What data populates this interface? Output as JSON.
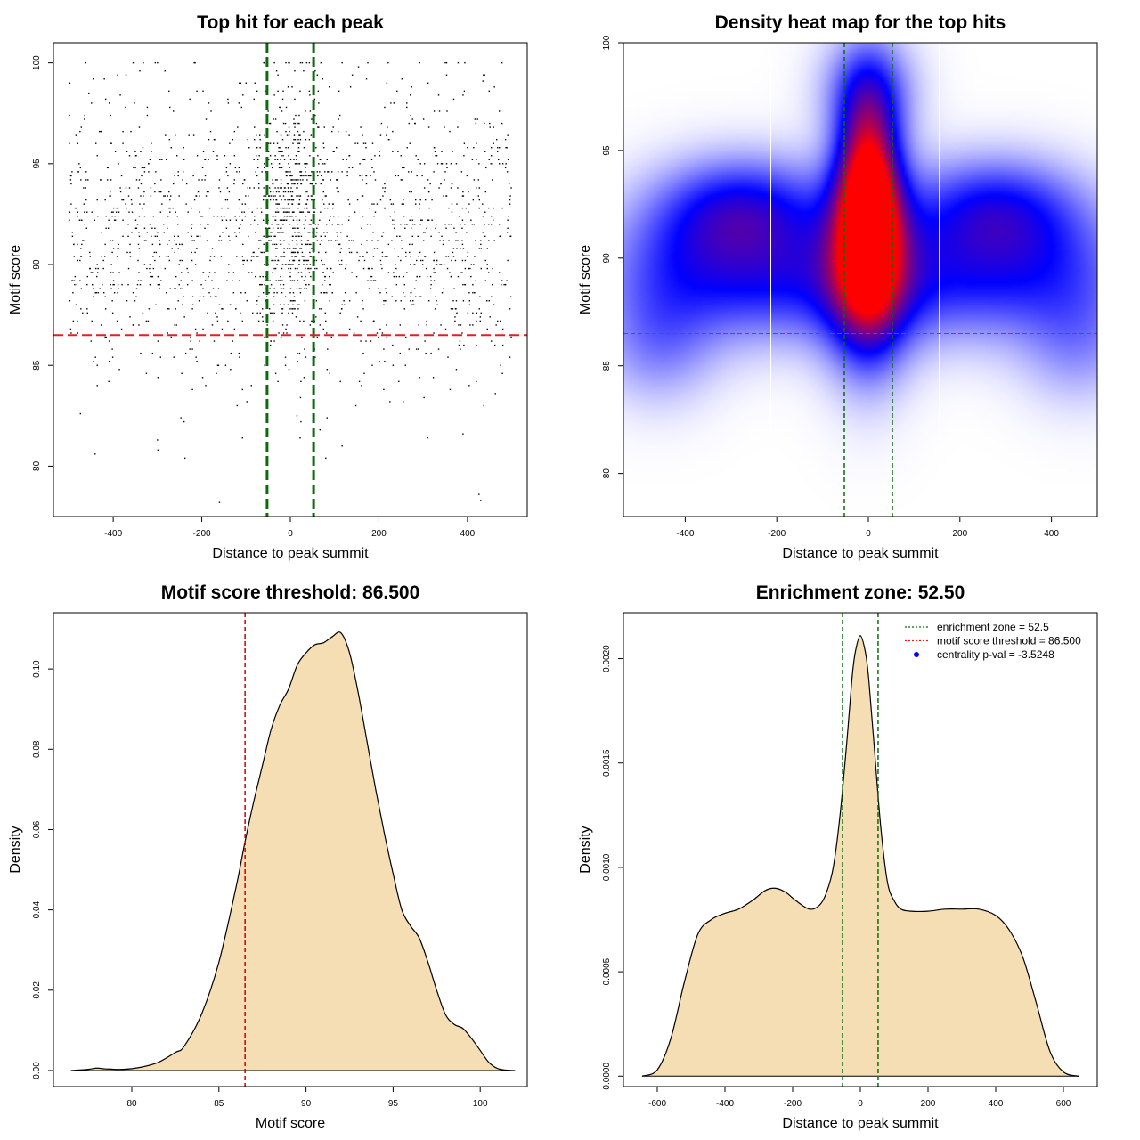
{
  "chart_data": [
    {
      "type": "scatter",
      "title": "Top hit for each peak",
      "xlabel": "Distance to peak summit",
      "ylabel": "Motif score",
      "xlim": [
        -535,
        535
      ],
      "ylim": [
        77.5,
        101.0
      ],
      "xticks": [
        -400,
        -200,
        0,
        200,
        400
      ],
      "yticks": [
        80,
        85,
        90,
        95,
        100
      ],
      "vlines": [
        -52.5,
        52.5
      ],
      "hline": 86.5,
      "line_colors": {
        "vline": "#0b6b0b",
        "hline": "#e0201b"
      },
      "grid": false,
      "point_sample": [
        {
          "x": -462,
          "y": 100
        },
        {
          "x": -455,
          "y": 98.5
        },
        {
          "x": -420,
          "y": 99.2
        },
        {
          "x": -300,
          "y": 100
        },
        {
          "x": -215,
          "y": 100
        },
        {
          "x": -115,
          "y": 99
        },
        {
          "x": -60,
          "y": 100
        },
        {
          "x": 10,
          "y": 99.6
        },
        {
          "x": 30,
          "y": 99.6
        },
        {
          "x": 175,
          "y": 100
        },
        {
          "x": 350,
          "y": 100
        },
        {
          "x": 435,
          "y": 99.1
        },
        {
          "x": -160,
          "y": 78.2
        },
        {
          "x": 430,
          "y": 78.3
        },
        {
          "x": 15,
          "y": 82.5
        },
        {
          "x": -300,
          "y": 81.3
        },
        {
          "x": 310,
          "y": 81.4
        },
        {
          "x": 390,
          "y": 81.6
        },
        {
          "x": 80,
          "y": 80.4
        },
        {
          "x": -240,
          "y": 82.2
        }
      ],
      "distribution": {
        "x_range": [
          -500,
          500
        ],
        "y_center": 91.5,
        "y_sd": 3.6,
        "center_enrichment": "concentrated between -52.5 and 52.5"
      }
    },
    {
      "type": "heatmap",
      "title": "Density heat map for the top hits",
      "xlabel": "Distance to peak summit",
      "ylabel": "Motif score",
      "xlim": [
        -535,
        500
      ],
      "ylim": [
        78,
        100
      ],
      "xticks": [
        -400,
        -200,
        0,
        200,
        400
      ],
      "yticks": [
        80,
        85,
        90,
        95,
        100
      ],
      "vlines": [
        -52.5,
        52.5
      ],
      "hline": 86.5,
      "white_lines": [
        -213,
        155
      ],
      "colors": {
        "low": "#ffffff",
        "mid": "#0000ff",
        "high": "#ff0000"
      },
      "density_blobs": [
        {
          "x": 0,
          "y": 92.5,
          "sx": 45,
          "sy": 3.2,
          "w": 1.0
        },
        {
          "x": 0,
          "y": 89.5,
          "sx": 70,
          "sy": 3.2,
          "w": 0.55
        },
        {
          "x": 0,
          "y": 97.8,
          "sx": 70,
          "sy": 1.8,
          "w": 0.28
        },
        {
          "x": -270,
          "y": 92.3,
          "sx": 130,
          "sy": 1.7,
          "w": 0.38
        },
        {
          "x": 270,
          "y": 92.3,
          "sx": 130,
          "sy": 1.7,
          "w": 0.35
        },
        {
          "x": -380,
          "y": 89.5,
          "sx": 140,
          "sy": 2.2,
          "w": 0.32
        },
        {
          "x": 380,
          "y": 89.5,
          "sx": 140,
          "sy": 2.2,
          "w": 0.3
        },
        {
          "x": -150,
          "y": 89.0,
          "sx": 120,
          "sy": 2.0,
          "w": 0.28
        },
        {
          "x": 150,
          "y": 89.0,
          "sx": 120,
          "sy": 2.0,
          "w": 0.26
        },
        {
          "x": -460,
          "y": 86,
          "sx": 90,
          "sy": 2.0,
          "w": 0.18
        },
        {
          "x": 460,
          "y": 86,
          "sx": 90,
          "sy": 2.0,
          "w": 0.16
        }
      ]
    },
    {
      "type": "area",
      "title": "Motif score threshold: 86.500",
      "xlabel": "Motif score",
      "ylabel": "Density",
      "xlim": [
        75.5,
        102.7
      ],
      "ylim": [
        -0.004,
        0.114
      ],
      "xticks": [
        80,
        85,
        90,
        95,
        100
      ],
      "yticks": [
        0.0,
        0.02,
        0.04,
        0.06,
        0.08,
        0.1
      ],
      "ytick_labels": [
        "0.00",
        "0.02",
        "0.04",
        "0.06",
        "0.08",
        "0.10"
      ],
      "fill": "#f5deb3",
      "vline": 86.5,
      "vline_color": "#cc0000",
      "x": [
        76.5,
        77.5,
        78.0,
        78.5,
        79.5,
        80.5,
        81.5,
        82.5,
        83.0,
        84.0,
        85.0,
        86.0,
        86.5,
        87.0,
        87.5,
        88.0,
        88.5,
        89.0,
        89.5,
        90.0,
        90.5,
        91.0,
        91.5,
        92.0,
        92.5,
        93.0,
        93.5,
        94.0,
        94.5,
        95.0,
        95.5,
        96.0,
        96.5,
        97.0,
        97.5,
        98.0,
        98.5,
        99.0,
        99.5,
        100.0,
        100.5,
        101.0,
        101.5,
        102.0
      ],
      "y": [
        0.0,
        0.0003,
        0.0006,
        0.0004,
        0.0003,
        0.0008,
        0.002,
        0.0045,
        0.006,
        0.014,
        0.027,
        0.046,
        0.057,
        0.067,
        0.076,
        0.085,
        0.091,
        0.095,
        0.101,
        0.104,
        0.106,
        0.1065,
        0.108,
        0.109,
        0.104,
        0.094,
        0.082,
        0.07,
        0.059,
        0.049,
        0.04,
        0.036,
        0.033,
        0.027,
        0.02,
        0.014,
        0.0115,
        0.0105,
        0.008,
        0.005,
        0.002,
        0.0005,
        0.0001,
        0.0
      ]
    },
    {
      "type": "area",
      "title": "Enrichment zone: 52.50",
      "xlabel": "Distance to peak summit",
      "ylabel": "Density",
      "xlim": [
        -700,
        700
      ],
      "ylim": [
        -5e-05,
        0.00222
      ],
      "xticks": [
        -600,
        -400,
        -200,
        0,
        200,
        400,
        600
      ],
      "yticks": [
        0,
        0.0005,
        0.001,
        0.0015,
        0.002
      ],
      "ytick_labels": [
        "0.0000",
        "0.0005",
        "0.0010",
        "0.0015",
        "0.0020"
      ],
      "fill": "#f5deb3",
      "vlines": [
        -52.5,
        52.5
      ],
      "vline_color": "#0b6b0b",
      "x": [
        -645,
        -600,
        -560,
        -520,
        -480,
        -440,
        -400,
        -360,
        -320,
        -280,
        -250,
        -220,
        -190,
        -150,
        -120,
        -100,
        -80,
        -60,
        -40,
        -25,
        -15,
        0,
        15,
        25,
        40,
        60,
        80,
        100,
        120,
        150,
        200,
        250,
        300,
        350,
        400,
        440,
        480,
        520,
        560,
        600,
        645
      ],
      "y": [
        0.0,
        3e-05,
        0.00018,
        0.00045,
        0.00068,
        0.00075,
        0.00078,
        0.0008,
        0.00084,
        0.00089,
        0.0009,
        0.00088,
        0.00084,
        0.0008,
        0.00082,
        0.00088,
        0.001,
        0.00125,
        0.0016,
        0.0019,
        0.00203,
        0.00211,
        0.00203,
        0.0019,
        0.0016,
        0.0012,
        0.00093,
        0.00084,
        0.0008,
        0.00079,
        0.00079,
        0.0008,
        0.0008,
        0.0008,
        0.00077,
        0.0007,
        0.00057,
        0.00035,
        0.00012,
        2e-05,
        0.0
      ],
      "legend": [
        {
          "label": "enrichment zone = 52.5",
          "color": "#0b6b0b",
          "marker": "line"
        },
        {
          "label": "motif score threshold = 86.500",
          "color": "#e0201b",
          "marker": "line"
        },
        {
          "label": "centrality p-val = -3.5248",
          "color": "#0000ff",
          "marker": "dot"
        }
      ],
      "legend_position": "top-right"
    }
  ]
}
